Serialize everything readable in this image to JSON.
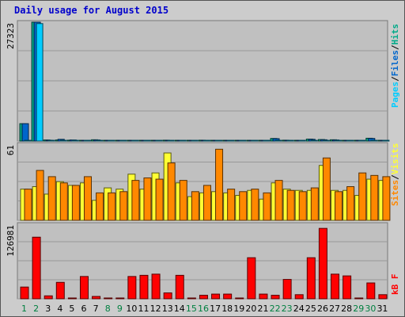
{
  "title": "Daily usage for August 2015",
  "colors": {
    "pages": "#00ccff",
    "files": "#0066cc",
    "hits": "#00aa88",
    "sites": "#ff8800",
    "visits": "#ffff33",
    "kbf": "#ff0000",
    "weekday_label": "#000000",
    "weekend_label": "#008040"
  },
  "chart_data": [
    {
      "type": "bar",
      "panel": "hits-files-pages",
      "ymax_label": "27323",
      "legend": {
        "pages": "Pages",
        "sep1": "/",
        "files": "Files",
        "sep2": "/",
        "hits": "Hits"
      },
      "ylim": [
        0,
        27323
      ],
      "categories": [
        "1",
        "2",
        "3",
        "4",
        "5",
        "6",
        "7",
        "8",
        "9",
        "10",
        "11",
        "12",
        "13",
        "14",
        "15",
        "16",
        "17",
        "18",
        "19",
        "20",
        "21",
        "22",
        "23",
        "24",
        "25",
        "26",
        "27",
        "28",
        "29",
        "30",
        "31"
      ],
      "weekend": [
        true,
        true,
        false,
        false,
        false,
        false,
        false,
        true,
        true,
        false,
        false,
        false,
        false,
        false,
        true,
        true,
        false,
        false,
        false,
        false,
        false,
        true,
        true,
        false,
        false,
        false,
        false,
        false,
        true,
        true,
        false
      ],
      "series": [
        {
          "name": "Hits",
          "values": [
            4000,
            27323,
            250,
            250,
            200,
            120,
            300,
            150,
            150,
            120,
            120,
            120,
            200,
            150,
            150,
            200,
            150,
            150,
            120,
            150,
            150,
            600,
            200,
            150,
            450,
            350,
            300,
            150,
            150,
            650,
            150
          ]
        },
        {
          "name": "Files",
          "values": [
            4000,
            27323,
            200,
            400,
            250,
            100,
            250,
            100,
            100,
            100,
            100,
            100,
            150,
            100,
            100,
            150,
            100,
            100,
            100,
            100,
            100,
            550,
            150,
            100,
            400,
            300,
            250,
            100,
            100,
            600,
            100
          ]
        },
        {
          "name": "Pages",
          "values": [
            50,
            27000,
            60,
            60,
            50,
            40,
            60,
            40,
            40,
            40,
            40,
            40,
            50,
            40,
            40,
            50,
            40,
            40,
            40,
            40,
            40,
            60,
            50,
            40,
            60,
            50,
            50,
            40,
            40,
            60,
            40
          ]
        }
      ]
    },
    {
      "type": "bar",
      "panel": "visits-sites",
      "ymax_label": "61",
      "legend": {
        "sites": "Sites",
        "sep": "/",
        "visits": "Visits"
      },
      "ylim": [
        0,
        61
      ],
      "series": [
        {
          "name": "Visits",
          "values": [
            25,
            27,
            21,
            31,
            28,
            30,
            16,
            26,
            25,
            37,
            25,
            38,
            54,
            30,
            19,
            22,
            23,
            22,
            20,
            24,
            17,
            30,
            25,
            24,
            24,
            44,
            24,
            24,
            20,
            33,
            32
          ]
        },
        {
          "name": "Sites",
          "values": [
            25,
            40,
            35,
            30,
            28,
            35,
            22,
            22,
            23,
            32,
            34,
            33,
            46,
            32,
            23,
            28,
            57,
            25,
            23,
            25,
            22,
            32,
            24,
            23,
            26,
            50,
            23,
            27,
            38,
            36,
            35
          ]
        }
      ]
    },
    {
      "type": "bar",
      "panel": "kb",
      "ymax_label": "126981",
      "legend": {
        "kbf": "kB F"
      },
      "ylim": [
        0,
        126981
      ],
      "series": [
        {
          "name": "kB F",
          "values": [
            20000,
            105000,
            5000,
            28000,
            1000,
            38000,
            4000,
            1000,
            1000,
            38000,
            40000,
            42000,
            10000,
            40000,
            1000,
            6000,
            8000,
            8000,
            1000,
            70000,
            8000,
            6000,
            33000,
            7000,
            70000,
            120000,
            42000,
            39000,
            1000,
            27000,
            7000
          ]
        }
      ]
    }
  ]
}
